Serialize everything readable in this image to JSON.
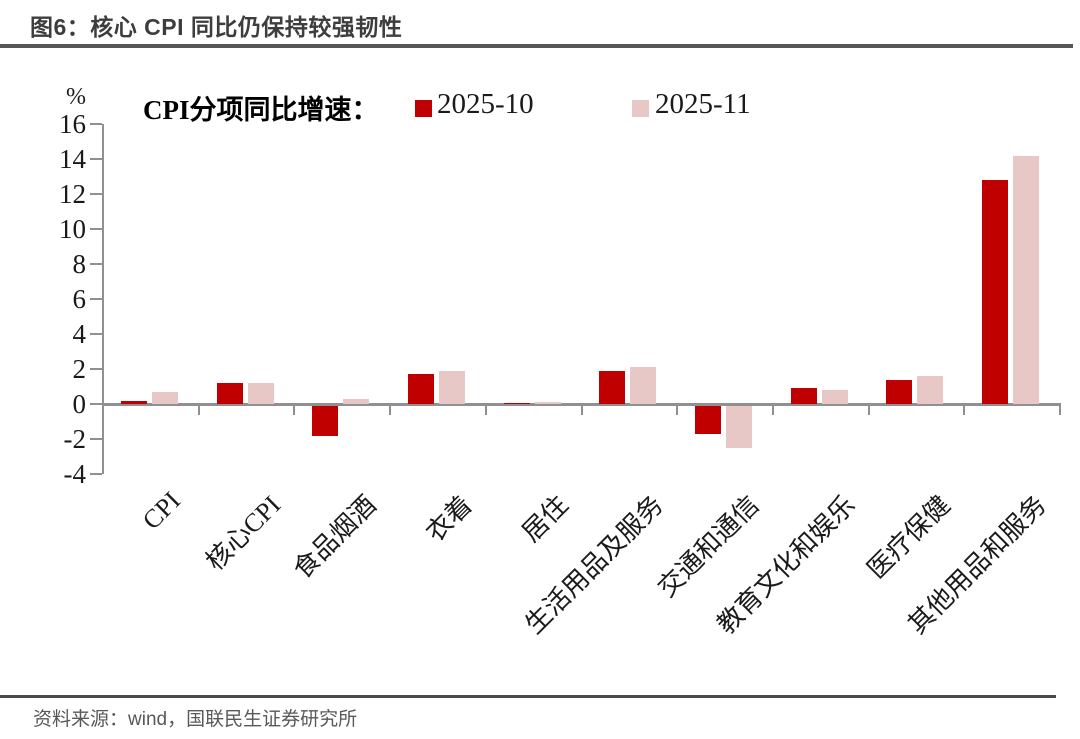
{
  "figure": {
    "title": "图6：核心 CPI 同比仍保持较强韧性",
    "source": "资料来源：wind，国联民生证券研究所"
  },
  "chart_data": {
    "type": "bar",
    "title": "CPI分项同比增速：",
    "ylabel": "%",
    "categories": [
      "CPI",
      "核心CPI",
      "食品烟酒",
      "衣着",
      "居住",
      "生活用品及服务",
      "交通和通信",
      "教育文化和娱乐",
      "医疗保健",
      "其他用品和服务"
    ],
    "series": [
      {
        "name": "2025-10",
        "color": "#C00000",
        "values": [
          0.2,
          1.2,
          -1.7,
          1.7,
          0.05,
          1.9,
          -1.6,
          0.9,
          1.4,
          12.8
        ]
      },
      {
        "name": "2025-11",
        "color": "#E8C7C7",
        "values": [
          0.7,
          1.2,
          0.3,
          1.9,
          0.1,
          2.1,
          -2.4,
          0.8,
          1.6,
          14.2
        ]
      }
    ],
    "ylim": [
      -4,
      16
    ],
    "ytick_step": 2,
    "legend_position": "top",
    "grid": false
  },
  "colors": {
    "bar_2025_10": "#C00000",
    "bar_2025_11": "#E8C7C7",
    "axis": "#909090",
    "title_text": "#3d3d3d",
    "rule": "#575757",
    "source_text": "#595959"
  }
}
